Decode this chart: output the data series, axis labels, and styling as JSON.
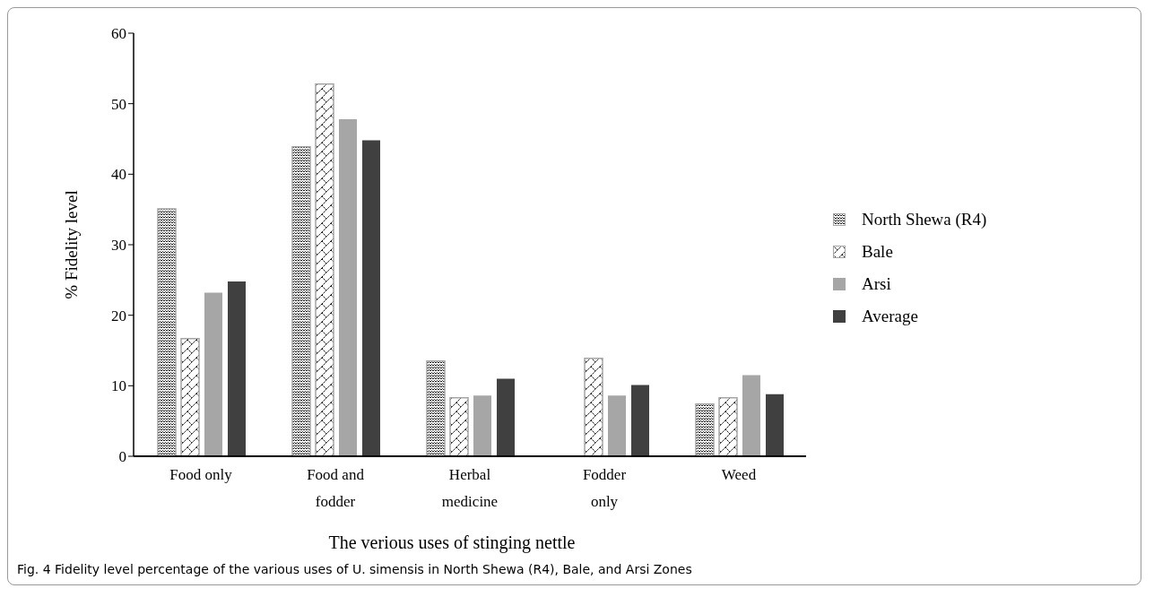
{
  "chart_data": {
    "type": "bar",
    "xlabel": "The verious uses of stinging nettle",
    "ylabel": "% Fidelity level",
    "categories": [
      "Food only",
      "Food and fodder",
      "Herbal medicine",
      "Fodder only",
      "Weed"
    ],
    "series": [
      {
        "name": "North Shewa (R4)",
        "color": "#a6a6a6",
        "values": [
          35.1,
          43.9,
          13.5,
          null,
          7.4
        ]
      },
      {
        "name": "Bale",
        "color": "#a5a5a5",
        "values": [
          16.7,
          52.8,
          8.3,
          13.9,
          8.3
        ]
      },
      {
        "name": "Arsi",
        "color": "#a6a6a6",
        "values": [
          23.2,
          47.8,
          8.6,
          8.6,
          11.5
        ]
      },
      {
        "name": "Average",
        "color": "#404040",
        "values": [
          24.8,
          44.8,
          11.0,
          10.1,
          8.8
        ]
      }
    ],
    "ylim": [
      0,
      60
    ],
    "yticks": [
      0,
      10,
      20,
      30,
      40,
      50,
      60
    ],
    "grid": false,
    "legend": "right",
    "annotations": [
      "Fig. 4  Fidelity level percentage of the various uses of U. simensis in North Shewa (R4), Bale, and Arsi Zones"
    ]
  }
}
